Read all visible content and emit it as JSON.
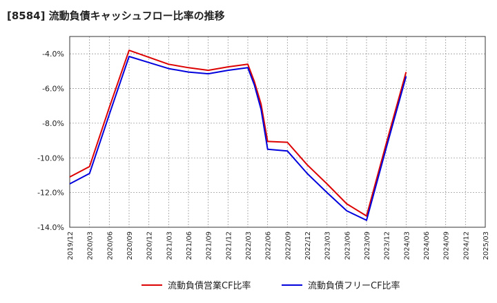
{
  "chart_data": {
    "type": "line",
    "title": "[8584]  流動負債キャッシュフロー比率の推移",
    "xlabel": "",
    "ylabel": "",
    "ylim": [
      -14,
      -3
    ],
    "y_ticks": [
      -4,
      -6,
      -8,
      -10,
      -12,
      -14
    ],
    "y_tick_labels": [
      "-4.0%",
      "-6.0%",
      "-8.0%",
      "-10.0%",
      "-12.0%",
      "-14.0%"
    ],
    "categories": [
      "2019/12",
      "2020/03",
      "2020/06",
      "2020/09",
      "2020/12",
      "2021/03",
      "2021/06",
      "2021/09",
      "2021/12",
      "2022/03",
      "2022/06",
      "2022/09",
      "2022/12",
      "2023/03",
      "2023/06",
      "2023/09",
      "2023/12",
      "2024/03",
      "2024/06",
      "2024/09",
      "2024/12",
      "2025/03"
    ],
    "grid": true,
    "legend_position": "bottom",
    "series": [
      {
        "name": "流動負債営業CF比率",
        "color": "#dd0000",
        "points": [
          {
            "x": 0,
            "y": -11.1
          },
          {
            "x": 1,
            "y": -10.5
          },
          {
            "x": 2,
            "y": -7.1
          },
          {
            "x": 3,
            "y": -3.8
          },
          {
            "x": 4,
            "y": -4.2
          },
          {
            "x": 5,
            "y": -4.6
          },
          {
            "x": 6,
            "y": -4.8
          },
          {
            "x": 7,
            "y": -4.95
          },
          {
            "x": 8,
            "y": -4.75
          },
          {
            "x": 9,
            "y": -4.6
          },
          {
            "x": 9.33,
            "y": -5.6
          },
          {
            "x": 9.67,
            "y": -6.9
          },
          {
            "x": 10,
            "y": -9.05
          },
          {
            "x": 11,
            "y": -9.1
          },
          {
            "x": 12,
            "y": -10.4
          },
          {
            "x": 13,
            "y": -11.5
          },
          {
            "x": 14,
            "y": -12.65
          },
          {
            "x": 15,
            "y": -13.35
          },
          {
            "x": 16,
            "y": -9.15
          },
          {
            "x": 17,
            "y": -5.05
          }
        ]
      },
      {
        "name": "流動負債フリーCF比率",
        "color": "#0000dd",
        "points": [
          {
            "x": 0,
            "y": -11.5
          },
          {
            "x": 1,
            "y": -10.9
          },
          {
            "x": 2,
            "y": -7.5
          },
          {
            "x": 3,
            "y": -4.15
          },
          {
            "x": 4,
            "y": -4.5
          },
          {
            "x": 5,
            "y": -4.85
          },
          {
            "x": 6,
            "y": -5.05
          },
          {
            "x": 7,
            "y": -5.15
          },
          {
            "x": 8,
            "y": -4.95
          },
          {
            "x": 9,
            "y": -4.8
          },
          {
            "x": 9.33,
            "y": -5.8
          },
          {
            "x": 9.67,
            "y": -7.2
          },
          {
            "x": 10,
            "y": -9.5
          },
          {
            "x": 11,
            "y": -9.6
          },
          {
            "x": 12,
            "y": -10.9
          },
          {
            "x": 13,
            "y": -12.0
          },
          {
            "x": 14,
            "y": -13.05
          },
          {
            "x": 15,
            "y": -13.6
          },
          {
            "x": 16,
            "y": -9.4
          },
          {
            "x": 17,
            "y": -5.3
          }
        ]
      }
    ]
  }
}
